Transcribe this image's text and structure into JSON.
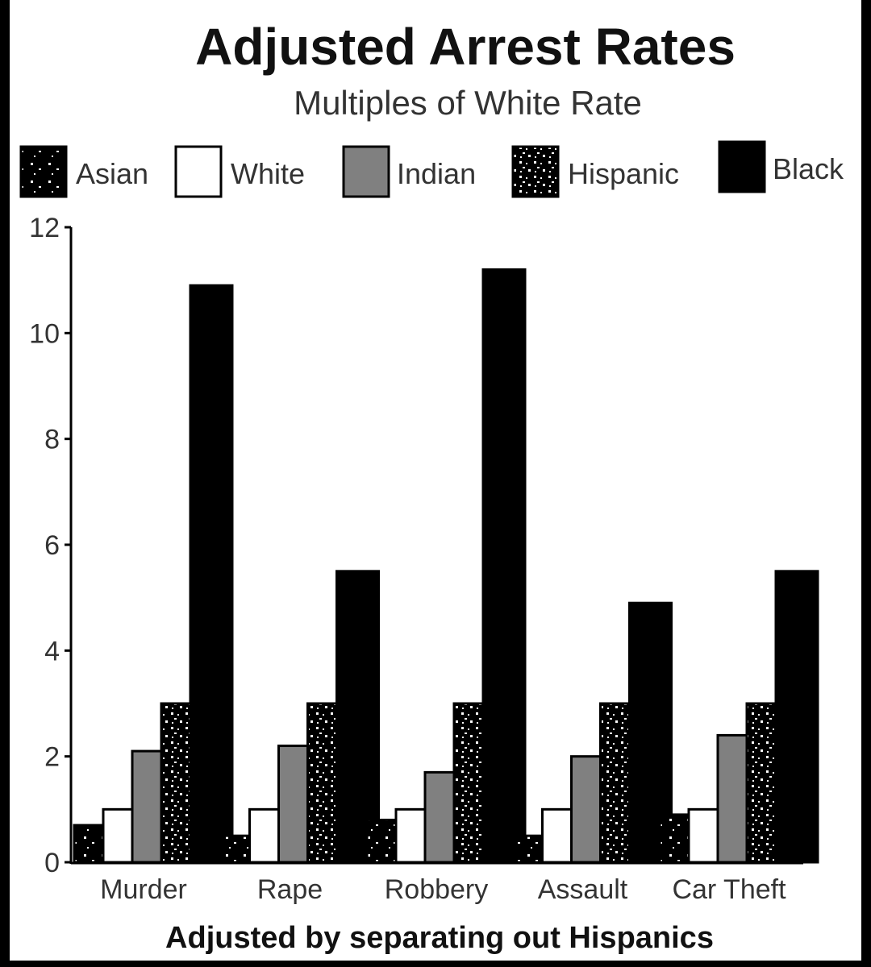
{
  "chart_data": {
    "type": "bar",
    "title": "Adjusted Arrest Rates",
    "subtitle": "Multiples of White Rate",
    "xlabel": "Adjusted by separating out Hispanics",
    "ylabel": "",
    "ylim": [
      0,
      12
    ],
    "yticks": [
      "0",
      "2",
      "4",
      "6",
      "8",
      "10",
      "12"
    ],
    "grid": false,
    "legend_position": "top",
    "categories": [
      "Murder",
      "Rape",
      "Robbery",
      "Assault",
      "Car Theft"
    ],
    "series": [
      {
        "name": "Asian",
        "values": [
          0.7,
          0.5,
          0.8,
          0.5,
          0.9
        ],
        "pattern": "sparse-dots",
        "color": "#000000"
      },
      {
        "name": "White",
        "values": [
          1.0,
          1.0,
          1.0,
          1.0,
          1.0
        ],
        "pattern": "solid",
        "color": "#ffffff"
      },
      {
        "name": "Indian",
        "values": [
          2.1,
          2.2,
          1.7,
          2.0,
          2.4
        ],
        "pattern": "solid",
        "color": "#808080"
      },
      {
        "name": "Hispanic",
        "values": [
          3.0,
          3.0,
          3.0,
          3.0,
          3.0
        ],
        "pattern": "dense-dots",
        "color": "#000000"
      },
      {
        "name": "Black",
        "values": [
          10.9,
          5.5,
          11.2,
          4.9,
          5.5
        ],
        "pattern": "solid",
        "color": "#000000"
      }
    ]
  }
}
